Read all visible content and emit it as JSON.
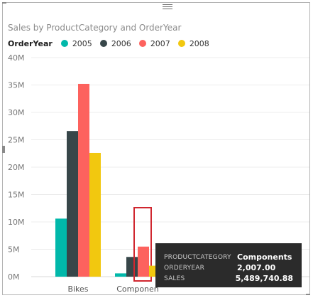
{
  "visual": {
    "title": "Sales by ProductCategory and OrderYear"
  },
  "legend": {
    "title": "OrderYear",
    "items": [
      {
        "label": "2005",
        "color": "#01B8AA"
      },
      {
        "label": "2006",
        "color": "#374649"
      },
      {
        "label": "2007",
        "color": "#FD625E"
      },
      {
        "label": "2008",
        "color": "#F2C80F"
      }
    ]
  },
  "chart_data": {
    "type": "bar",
    "title": "Sales by ProductCategory and OrderYear",
    "xlabel": "",
    "ylabel": "",
    "ylim": [
      0,
      40000000
    ],
    "yticks": [
      0,
      5000000,
      10000000,
      15000000,
      20000000,
      25000000,
      30000000,
      35000000,
      40000000
    ],
    "ytick_labels": [
      "0M",
      "5M",
      "10M",
      "15M",
      "20M",
      "25M",
      "30M",
      "35M",
      "40M"
    ],
    "categories": [
      "Bikes",
      "Components"
    ],
    "category_labels": [
      "Bikes",
      "Componen"
    ],
    "series": [
      {
        "name": "2005",
        "color": "#01B8AA",
        "values": [
          10600000,
          600000
        ]
      },
      {
        "name": "2006",
        "color": "#374649",
        "values": [
          26600000,
          3600000
        ]
      },
      {
        "name": "2007",
        "color": "#FD625E",
        "values": [
          35200000,
          5489740.88
        ]
      },
      {
        "name": "2008",
        "color": "#F2C80F",
        "values": [
          22600000,
          2000000
        ]
      }
    ],
    "grid": true,
    "legend_position": "top-left",
    "highlight": {
      "category": "Components",
      "series": "2007"
    }
  },
  "tooltip": {
    "rows": [
      {
        "key": "PRODUCTCATEGORY",
        "value": "Components"
      },
      {
        "key": "ORDERYEAR",
        "value": "2,007.00"
      },
      {
        "key": "SALES",
        "value": "5,489,740.88"
      }
    ]
  }
}
